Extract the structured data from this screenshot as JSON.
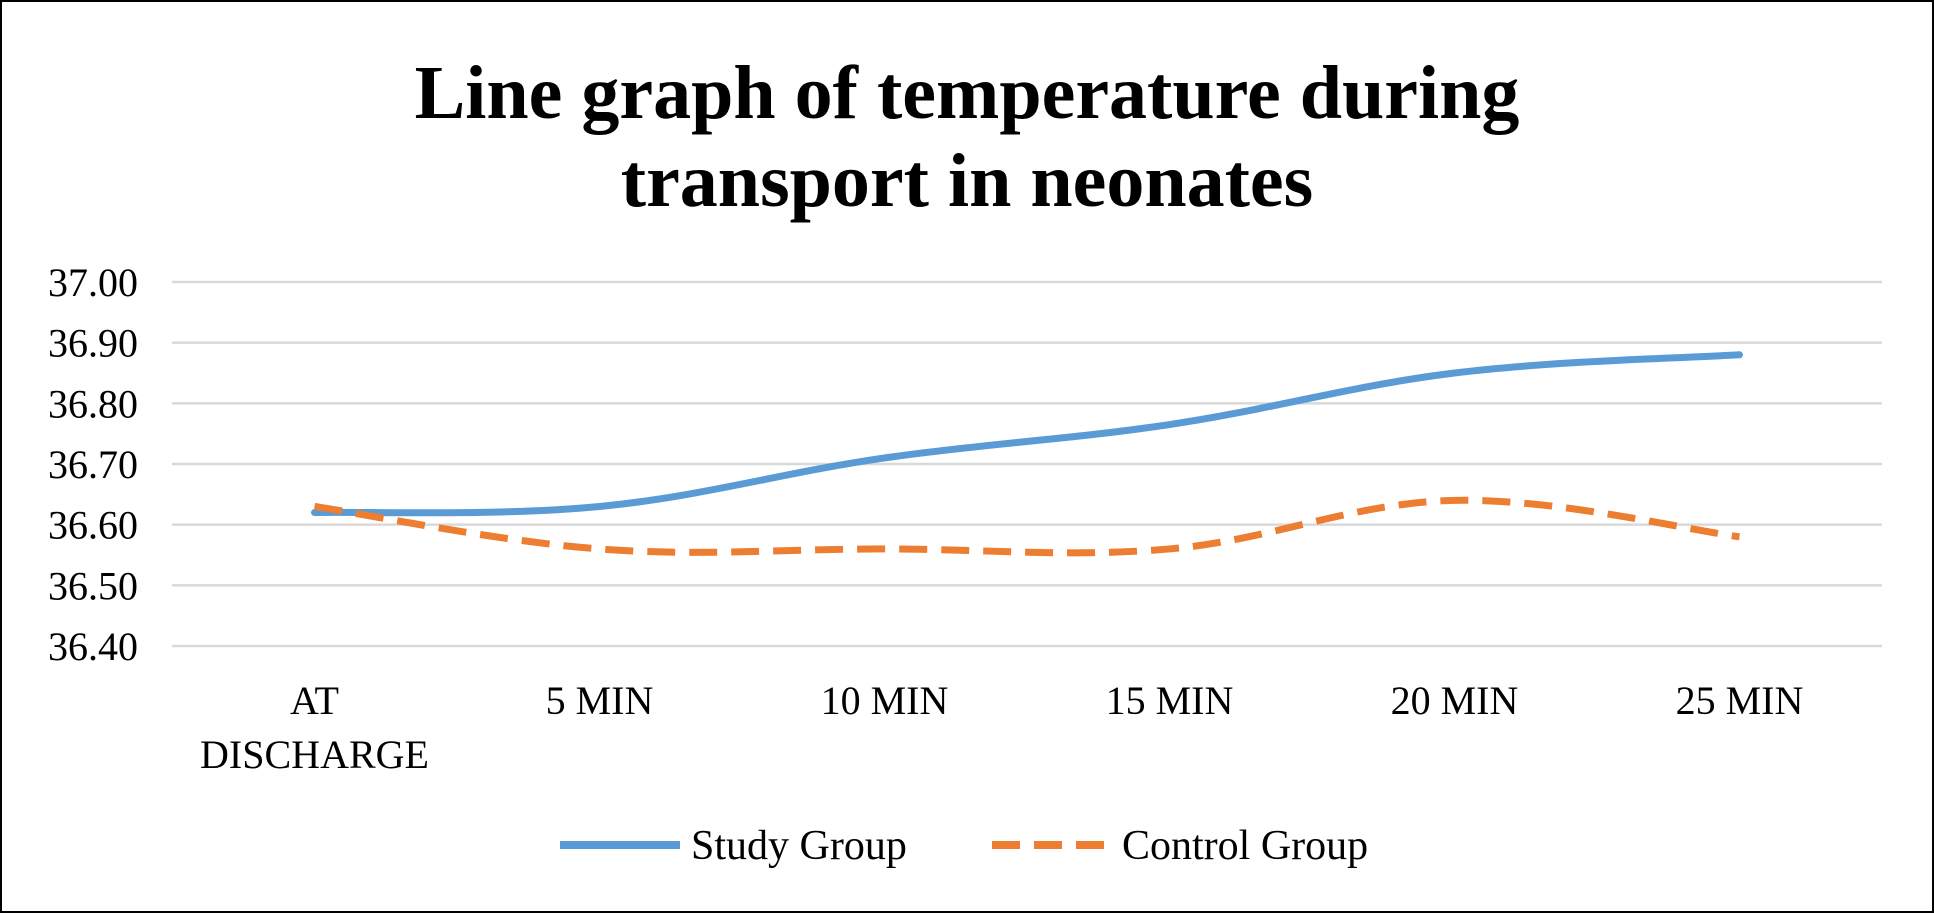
{
  "chart_data": {
    "type": "line",
    "title_lines": [
      "Line graph of temperature during",
      "transport in neonates"
    ],
    "categories": [
      [
        "AT",
        "DISCHARGE"
      ],
      [
        "5 MIN"
      ],
      [
        "10 MIN"
      ],
      [
        "15 MIN"
      ],
      [
        "20 MIN"
      ],
      [
        "25 MIN"
      ]
    ],
    "y_ticks": [
      "36.40",
      "36.50",
      "36.60",
      "36.70",
      "36.80",
      "36.90",
      "37.00"
    ],
    "ylim": [
      36.4,
      37.0
    ],
    "grid": true,
    "legend_position": "bottom",
    "xlabel": "",
    "ylabel": "",
    "series": [
      {
        "name": "Study Group",
        "color": "#5b9bd5",
        "style": "solid",
        "values": [
          36.62,
          36.63,
          36.71,
          36.765,
          36.85,
          36.88
        ]
      },
      {
        "name": "Control Group",
        "color": "#ed7d31",
        "style": "dashed",
        "values": [
          36.63,
          36.56,
          36.56,
          36.56,
          36.64,
          36.58
        ]
      }
    ]
  }
}
